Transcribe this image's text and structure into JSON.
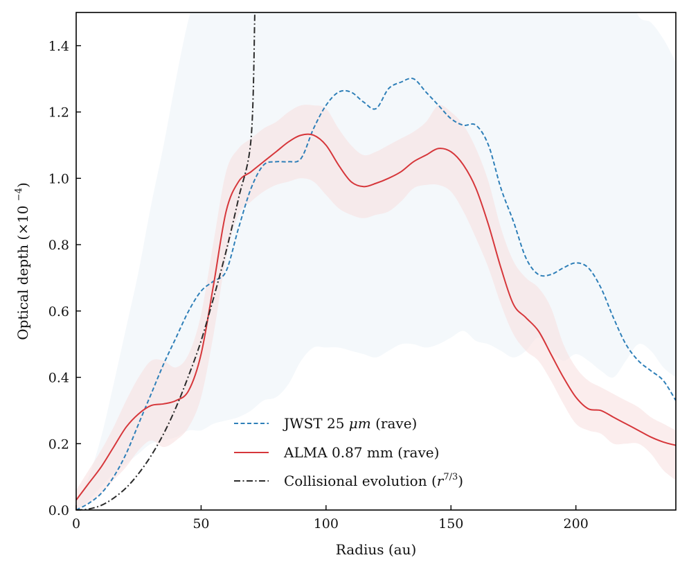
{
  "chart_data": {
    "type": "line",
    "title": "",
    "xlabel": "Radius (au)",
    "ylabel": "Optical depth (×10⁻⁴)",
    "xlim": [
      0,
      240
    ],
    "ylim": [
      0,
      1.5
    ],
    "xticks": [
      0,
      50,
      100,
      150,
      200
    ],
    "yticks": [
      0.0,
      0.2,
      0.4,
      0.6,
      0.8,
      1.0,
      1.2,
      1.4
    ],
    "xtick_labels": [
      "0",
      "50",
      "100",
      "150",
      "200"
    ],
    "ytick_labels": [
      "0.0",
      "0.2",
      "0.4",
      "0.6",
      "0.8",
      "1.0",
      "1.2",
      "1.4"
    ],
    "grid": false,
    "legend_position": "lower-center",
    "series": [
      {
        "name": "JWST 25 μm (rave)",
        "style": "dashed",
        "color": "#2e7fb8",
        "x": [
          0,
          5,
          10,
          15,
          20,
          25,
          30,
          35,
          40,
          45,
          50,
          55,
          60,
          65,
          70,
          75,
          80,
          85,
          90,
          95,
          100,
          105,
          110,
          115,
          120,
          125,
          130,
          135,
          140,
          145,
          150,
          155,
          160,
          165,
          170,
          175,
          180,
          185,
          190,
          195,
          200,
          205,
          210,
          215,
          220,
          225,
          230,
          235,
          240
        ],
        "y": [
          0.0,
          0.02,
          0.05,
          0.1,
          0.17,
          0.26,
          0.35,
          0.44,
          0.52,
          0.6,
          0.66,
          0.69,
          0.72,
          0.85,
          0.97,
          1.04,
          1.05,
          1.05,
          1.06,
          1.15,
          1.22,
          1.26,
          1.26,
          1.23,
          1.21,
          1.27,
          1.29,
          1.3,
          1.26,
          1.22,
          1.18,
          1.16,
          1.16,
          1.1,
          0.97,
          0.87,
          0.76,
          0.71,
          0.71,
          0.73,
          0.745,
          0.73,
          0.67,
          0.58,
          0.5,
          0.45,
          0.42,
          0.39,
          0.33
        ],
        "band_lower": [
          0.0,
          0.03,
          0.07,
          0.11,
          0.14,
          0.17,
          0.2,
          0.21,
          0.22,
          0.24,
          0.24,
          0.26,
          0.27,
          0.28,
          0.3,
          0.33,
          0.34,
          0.38,
          0.45,
          0.49,
          0.49,
          0.49,
          0.48,
          0.47,
          0.46,
          0.48,
          0.5,
          0.5,
          0.49,
          0.5,
          0.52,
          0.54,
          0.51,
          0.5,
          0.48,
          0.46,
          0.48,
          0.52,
          0.48,
          0.45,
          0.47,
          0.45,
          0.42,
          0.4,
          0.45,
          0.5,
          0.48,
          0.43,
          0.4
        ],
        "band_upper": [
          0.02,
          0.1,
          0.22,
          0.38,
          0.55,
          0.72,
          0.92,
          1.1,
          1.3,
          1.48,
          1.6,
          1.6,
          1.6,
          1.6,
          1.6,
          1.6,
          1.6,
          1.6,
          1.6,
          1.6,
          1.6,
          1.6,
          1.6,
          1.6,
          1.6,
          1.6,
          1.6,
          1.6,
          1.6,
          1.6,
          1.6,
          1.6,
          1.6,
          1.6,
          1.6,
          1.6,
          1.6,
          1.6,
          1.6,
          1.6,
          1.6,
          1.6,
          1.6,
          1.6,
          1.6,
          1.49,
          1.47,
          1.42,
          1.35
        ]
      },
      {
        "name": "ALMA 0.87 mm (rave)",
        "style": "solid",
        "color": "#d6363a",
        "x": [
          0,
          5,
          10,
          15,
          20,
          25,
          30,
          35,
          40,
          45,
          50,
          55,
          60,
          65,
          70,
          75,
          80,
          85,
          90,
          95,
          100,
          105,
          110,
          115,
          120,
          125,
          130,
          135,
          140,
          145,
          150,
          155,
          160,
          165,
          170,
          175,
          180,
          185,
          190,
          195,
          200,
          205,
          210,
          215,
          220,
          225,
          230,
          235,
          240
        ],
        "y": [
          0.03,
          0.08,
          0.13,
          0.19,
          0.25,
          0.29,
          0.315,
          0.32,
          0.33,
          0.36,
          0.47,
          0.68,
          0.9,
          0.99,
          1.02,
          1.05,
          1.08,
          1.11,
          1.13,
          1.13,
          1.1,
          1.04,
          0.99,
          0.975,
          0.985,
          1.0,
          1.02,
          1.05,
          1.07,
          1.09,
          1.08,
          1.04,
          0.97,
          0.86,
          0.73,
          0.62,
          0.58,
          0.54,
          0.47,
          0.4,
          0.34,
          0.305,
          0.3,
          0.28,
          0.26,
          0.24,
          0.22,
          0.205,
          0.195
        ],
        "band_lower": [
          0.0,
          0.02,
          0.05,
          0.09,
          0.13,
          0.18,
          0.21,
          0.19,
          0.21,
          0.25,
          0.34,
          0.53,
          0.76,
          0.89,
          0.93,
          0.96,
          0.98,
          0.99,
          1.0,
          0.99,
          0.95,
          0.91,
          0.89,
          0.88,
          0.89,
          0.9,
          0.93,
          0.97,
          0.98,
          0.98,
          0.96,
          0.9,
          0.82,
          0.73,
          0.62,
          0.53,
          0.48,
          0.45,
          0.39,
          0.32,
          0.26,
          0.24,
          0.23,
          0.2,
          0.2,
          0.2,
          0.17,
          0.12,
          0.09
        ],
        "band_upper": [
          0.06,
          0.12,
          0.18,
          0.25,
          0.33,
          0.4,
          0.45,
          0.45,
          0.43,
          0.47,
          0.59,
          0.81,
          1.02,
          1.09,
          1.12,
          1.15,
          1.17,
          1.2,
          1.22,
          1.22,
          1.21,
          1.15,
          1.1,
          1.07,
          1.08,
          1.1,
          1.12,
          1.14,
          1.17,
          1.22,
          1.2,
          1.16,
          1.09,
          0.99,
          0.85,
          0.75,
          0.7,
          0.67,
          0.61,
          0.5,
          0.43,
          0.39,
          0.37,
          0.35,
          0.33,
          0.31,
          0.28,
          0.26,
          0.24
        ]
      },
      {
        "name": "Collisional evolution (r^7/3)",
        "style": "dashdot",
        "color": "#2a2a2a",
        "x": [
          0,
          5,
          10,
          15,
          20,
          25,
          30,
          35,
          40,
          45,
          50,
          55,
          60,
          65,
          70,
          71.5
        ],
        "y": [
          0,
          0.003,
          0.014,
          0.036,
          0.067,
          0.11,
          0.164,
          0.23,
          0.31,
          0.405,
          0.51,
          0.64,
          0.78,
          0.94,
          1.12,
          1.5
        ]
      }
    ]
  },
  "legend": {
    "items": [
      {
        "text": "JWST 25 ",
        "math": "μm",
        "suffix": " (rave)"
      },
      {
        "text": "ALMA 0.87 mm (rave)"
      },
      {
        "text": "Collisional evolution (",
        "math": "r",
        "sup": "7/3",
        "suffix": ")"
      }
    ]
  },
  "colors": {
    "jwst": "#2e7fb8",
    "alma": "#d6363a",
    "collisional": "#2a2a2a",
    "jwst_band": "#dce8f2",
    "alma_band": "#f7dede"
  }
}
